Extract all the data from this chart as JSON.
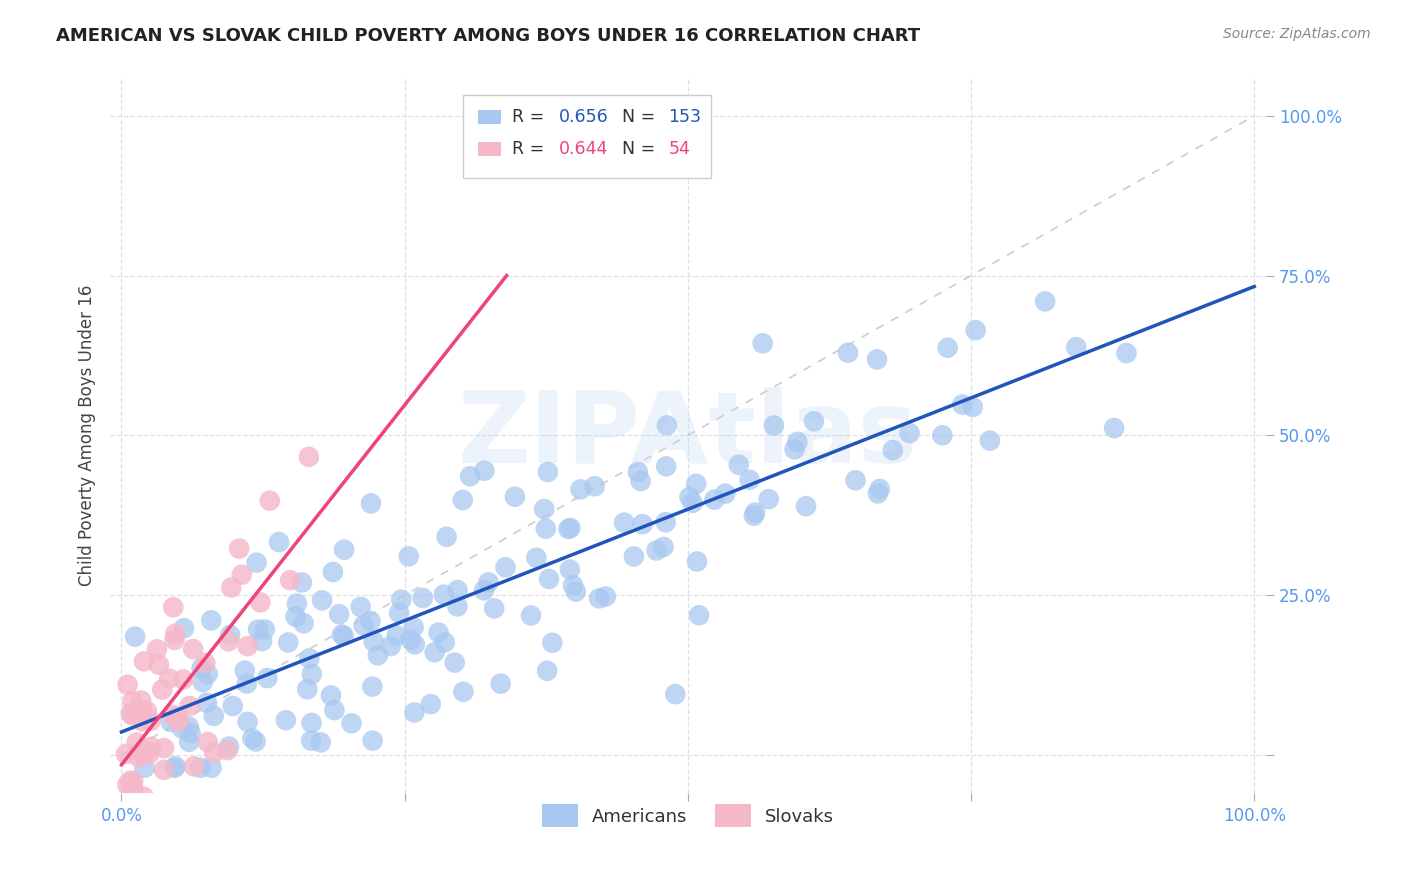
{
  "title": "AMERICAN VS SLOVAK CHILD POVERTY AMONG BOYS UNDER 16 CORRELATION CHART",
  "source": "Source: ZipAtlas.com",
  "ylabel": "Child Poverty Among Boys Under 16",
  "watermark": "ZIPAtlas",
  "R_american": 0.656,
  "N_american": 153,
  "R_slovak": 0.644,
  "N_slovak": 54,
  "american_scatter_color": "#a8c8f0",
  "slovak_scatter_color": "#f5b8c8",
  "american_line_color": "#2255bb",
  "slovak_line_color": "#ee4477",
  "diagonal_color": "#cccccc",
  "background_color": "#ffffff",
  "grid_color": "#e0e0e0",
  "american_label": "Americans",
  "slovak_label": "Slovaks",
  "ytick_color": "#5599ee",
  "xtick_color": "#5599ee",
  "ylabel_color": "#444444",
  "title_color": "#222222",
  "source_color": "#888888"
}
